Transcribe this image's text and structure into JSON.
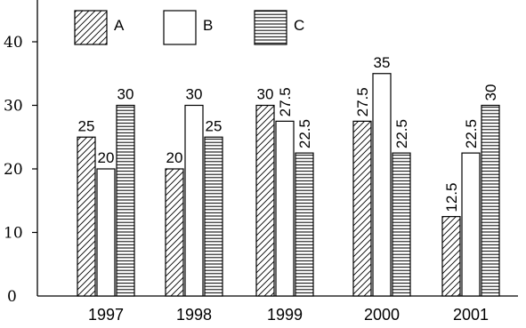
{
  "chart_data": {
    "type": "bar",
    "categories": [
      "1997",
      "1998",
      "1999",
      "2000",
      "2001"
    ],
    "series": [
      {
        "name": "A",
        "pattern": "diagonal-hatch",
        "values": [
          25,
          20,
          30,
          27.5,
          12.5
        ]
      },
      {
        "name": "B",
        "pattern": "none",
        "values": [
          20,
          30,
          27.5,
          35,
          22.5
        ]
      },
      {
        "name": "C",
        "pattern": "horizontal-lines",
        "values": [
          30,
          25,
          22.5,
          22.5,
          30
        ]
      }
    ],
    "data_labels": [
      [
        "25",
        "20",
        "30"
      ],
      [
        "20",
        "30",
        "25"
      ],
      [
        "30",
        "27.5",
        "22.5"
      ],
      [
        "27.5",
        "35",
        "22.5"
      ],
      [
        "12.5",
        "22.5",
        "30"
      ]
    ],
    "rotated_labels": [
      [
        false,
        false,
        false
      ],
      [
        false,
        false,
        false
      ],
      [
        false,
        true,
        true
      ],
      [
        true,
        false,
        true
      ],
      [
        true,
        true,
        true
      ]
    ],
    "yticks": [
      "0",
      "10",
      "20",
      "30",
      "40"
    ],
    "ylim": [
      0,
      45
    ],
    "title": "",
    "xlabel": "",
    "ylabel": "",
    "grid": false,
    "legend_position": "top-left"
  }
}
